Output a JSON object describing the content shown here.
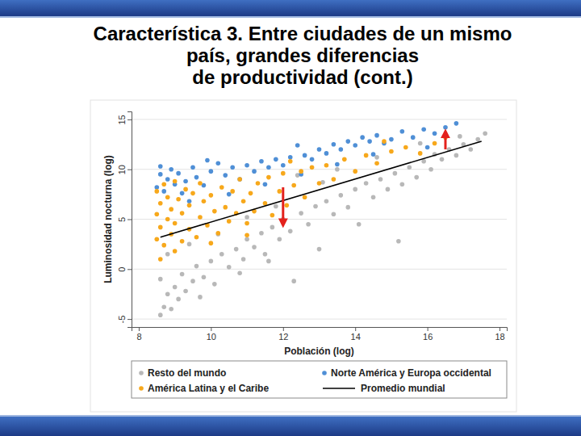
{
  "chart_data": {
    "type": "scatter",
    "title": "Característica 3. Entre ciudades de un mismo\npaís, grandes diferencias\nde productividad (cont.)",
    "xlabel": "Población (log)",
    "ylabel": "Luminosidad nocturna (log)",
    "xlim": [
      7.8,
      18.2
    ],
    "ylim": [
      -5.8,
      15.8
    ],
    "xticks": [
      8,
      10,
      12,
      14,
      16,
      18
    ],
    "yticks": [
      -5,
      0,
      5,
      10,
      15
    ],
    "grid": true,
    "legend": "bottom",
    "series": [
      {
        "name": "Resto del mundo",
        "color": "#b8b8b8",
        "marker": "circle",
        "x": [
          8.6,
          8.7,
          8.8,
          8.9,
          9.0,
          9.1,
          9.2,
          9.3,
          9.5,
          9.6,
          9.8,
          10.0,
          10.1,
          10.3,
          10.5,
          10.7,
          10.9,
          11.0,
          11.2,
          11.4,
          11.5,
          11.7,
          11.9,
          12.0,
          12.2,
          12.3,
          12.5,
          12.7,
          12.9,
          13.0,
          13.2,
          13.4,
          13.6,
          13.8,
          14.0,
          14.1,
          14.3,
          14.5,
          14.7,
          14.9,
          15.2,
          15.1,
          15.3,
          15.5,
          15.7,
          15.9,
          16.1,
          16.2,
          16.4,
          16.6,
          16.8,
          17.0,
          17.2,
          17.4,
          17.6,
          16.9,
          15.8,
          14.6,
          13.5,
          12.4,
          8.8,
          9.4,
          10.2,
          11.0,
          11.8,
          13.1,
          8.6,
          9.7,
          10.8,
          11.6
        ],
        "values": [
          -4.6,
          -3.8,
          -2.5,
          -4.0,
          -1.8,
          -3.0,
          -0.5,
          -2.2,
          -1.2,
          0.3,
          -0.8,
          0.8,
          -1.5,
          1.5,
          0.2,
          2.0,
          1.0,
          3.0,
          2.2,
          3.6,
          1.5,
          4.2,
          3.0,
          5.0,
          3.8,
          -1.2,
          5.6,
          4.5,
          6.3,
          2.0,
          6.8,
          5.5,
          7.4,
          6.2,
          8.0,
          4.5,
          8.6,
          7.2,
          9.0,
          8.0,
          2.8,
          9.6,
          8.5,
          10.2,
          9.2,
          10.8,
          10.0,
          11.5,
          11.0,
          12.0,
          11.4,
          12.5,
          12.0,
          13.0,
          13.6,
          13.3,
          12.6,
          11.2,
          10.0,
          9.4,
          1.5,
          2.5,
          3.5,
          5.2,
          6.3,
          8.7,
          -1.0,
          -2.8,
          -0.4,
          0.8
        ]
      },
      {
        "name": "Norte América y Europa occidental",
        "color": "#4f8fd6",
        "marker": "circle",
        "x": [
          8.5,
          8.6,
          8.7,
          8.8,
          8.9,
          9.0,
          9.1,
          9.2,
          9.3,
          9.5,
          9.6,
          9.8,
          10.0,
          10.2,
          10.4,
          10.6,
          10.8,
          11.0,
          11.2,
          11.4,
          11.6,
          11.8,
          12.0,
          12.2,
          12.4,
          12.6,
          12.8,
          13.0,
          13.2,
          13.4,
          13.6,
          13.8,
          14.0,
          14.2,
          14.4,
          14.6,
          14.8,
          15.0,
          15.3,
          15.6,
          15.9,
          16.2,
          16.5,
          16.8,
          9.4,
          10.5,
          11.5,
          12.5,
          13.5,
          14.5,
          16.0,
          8.6,
          9.9
        ],
        "values": [
          8.2,
          9.5,
          7.8,
          9.0,
          10.0,
          8.5,
          9.6,
          7.6,
          8.8,
          10.2,
          9.2,
          8.4,
          9.8,
          10.6,
          9.4,
          10.2,
          9.0,
          10.4,
          9.8,
          10.8,
          10.2,
          11.0,
          10.4,
          11.2,
          12.4,
          11.4,
          11.0,
          12.0,
          11.6,
          12.5,
          12.0,
          12.8,
          12.4,
          13.2,
          12.8,
          13.4,
          12.6,
          13.0,
          13.8,
          13.2,
          14.0,
          13.6,
          14.2,
          14.6,
          6.8,
          7.5,
          8.5,
          9.5,
          10.5,
          11.5,
          12.2,
          10.3,
          10.9
        ]
      },
      {
        "name": "América Latina y el Caribe",
        "color": "#f7a81b",
        "marker": "circle",
        "x": [
          8.5,
          8.5,
          8.5,
          8.6,
          8.6,
          8.7,
          8.7,
          8.8,
          8.8,
          8.9,
          8.9,
          9.0,
          9.0,
          9.1,
          9.2,
          9.2,
          9.3,
          9.4,
          9.4,
          9.5,
          9.6,
          9.7,
          9.7,
          9.8,
          9.9,
          10.0,
          10.1,
          10.2,
          10.3,
          10.4,
          10.5,
          10.6,
          10.7,
          10.8,
          10.9,
          11.0,
          11.1,
          11.2,
          11.3,
          11.5,
          11.6,
          11.7,
          11.9,
          12.0,
          12.1,
          12.3,
          12.5,
          12.6,
          12.8,
          13.0,
          13.2,
          13.4,
          13.7,
          14.0,
          14.3,
          14.6,
          15.0,
          15.4,
          15.8,
          16.2,
          16.5,
          9.0,
          10.0,
          11.0,
          12.2,
          8.6,
          14.8
        ],
        "values": [
          3.0,
          5.5,
          7.8,
          4.2,
          6.6,
          2.4,
          8.5,
          5.0,
          7.2,
          3.5,
          6.0,
          8.8,
          4.6,
          7.0,
          2.8,
          5.6,
          8.0,
          4.0,
          6.4,
          7.6,
          3.2,
          5.2,
          8.6,
          6.8,
          4.4,
          7.4,
          5.8,
          3.6,
          8.2,
          6.2,
          4.8,
          7.8,
          5.6,
          9.0,
          6.8,
          4.6,
          7.6,
          5.8,
          8.6,
          6.6,
          9.2,
          5.4,
          7.8,
          9.6,
          6.4,
          8.4,
          9.8,
          7.2,
          10.2,
          8.6,
          10.4,
          9.0,
          11.0,
          9.8,
          11.4,
          10.6,
          11.8,
          12.2,
          11.6,
          12.6,
          13.2,
          1.8,
          2.6,
          3.4,
          10.8,
          1.0,
          12.8
        ]
      },
      {
        "name": "Promedio mundial",
        "color": "#000000",
        "type": "line",
        "line_style": "solid",
        "x": [
          8.6,
          17.5
        ],
        "values": [
          3.2,
          12.8
        ]
      }
    ],
    "annotations": [
      {
        "type": "arrow",
        "x": 12.0,
        "y": 8.2,
        "y_end": 4.6,
        "color": "#e3211c"
      },
      {
        "type": "arrow",
        "x": 16.5,
        "y": 12.0,
        "y_end": 13.6,
        "color": "#e3211c"
      }
    ]
  }
}
